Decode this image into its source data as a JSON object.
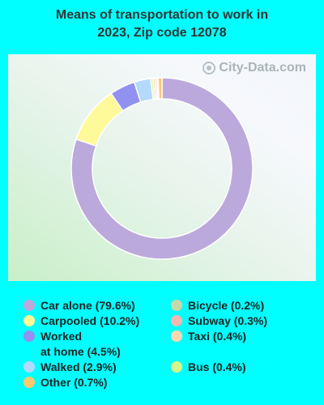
{
  "title_lines": [
    "Means of transportation to work in",
    "2023, Zip code 12078"
  ],
  "watermark": "City-Data.com",
  "chart_data": {
    "type": "pie",
    "variant": "donut",
    "title": "Means of transportation to work in 2023, Zip code 12078",
    "series": [
      {
        "name": "Car alone",
        "value": 79.6,
        "label": "Car alone (79.6%)",
        "color": "#bca9dc"
      },
      {
        "name": "Carpooled",
        "value": 10.2,
        "label": "Carpooled (10.2%)",
        "color": "#fffa99"
      },
      {
        "name": "Worked at home",
        "value": 4.5,
        "label": "Worked at home (4.5%)",
        "label_lines": [
          "Worked",
          "at home (4.5%)"
        ],
        "color": "#9191f0"
      },
      {
        "name": "Walked",
        "value": 2.9,
        "label": "Walked (2.9%)",
        "color": "#b3d9ff"
      },
      {
        "name": "Other",
        "value": 0.7,
        "label": "Other (0.7%)",
        "color": "#ffc970"
      },
      {
        "name": "Bicycle",
        "value": 0.2,
        "label": "Bicycle (0.2%)",
        "color": "#c8d8a8"
      },
      {
        "name": "Subway",
        "value": 0.3,
        "label": "Subway (0.3%)",
        "color": "#f4b6b0"
      },
      {
        "name": "Taxi",
        "value": 0.4,
        "label": "Taxi (0.4%)",
        "color": "#ffd8b0"
      },
      {
        "name": "Bus",
        "value": 0.4,
        "label": "Bus (0.4%)",
        "color": "#d8f58a"
      }
    ],
    "slice_order": [
      "Car alone",
      "Carpooled",
      "Worked at home",
      "Walked",
      "Bus",
      "Taxi",
      "Subway",
      "Bicycle",
      "Other"
    ]
  }
}
